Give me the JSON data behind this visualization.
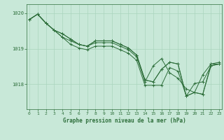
{
  "title": "Graphe pression niveau de la mer (hPa)",
  "bg_color": "#c8e8d8",
  "grid_color": "#aad4be",
  "line_color": "#2d6e3a",
  "ylim": [
    1017.3,
    1020.25
  ],
  "yticks": [
    1018,
    1019,
    1020
  ],
  "xlim": [
    -0.3,
    23.3
  ],
  "xticks": [
    0,
    1,
    2,
    3,
    4,
    5,
    6,
    7,
    8,
    9,
    10,
    11,
    12,
    13,
    14,
    15,
    16,
    17,
    18,
    19,
    20,
    21,
    22,
    23
  ],
  "series": [
    [
      1019.82,
      1019.97,
      1019.72,
      1019.52,
      1019.32,
      1019.22,
      1019.12,
      1019.07,
      1019.17,
      1019.17,
      1019.17,
      1019.07,
      1018.97,
      1018.77,
      1018.07,
      1018.52,
      1018.72,
      1018.32,
      1018.17,
      1017.87,
      1017.77,
      1017.72,
      1018.57,
      1018.62
    ],
    [
      1019.82,
      1019.97,
      1019.72,
      1019.52,
      1019.42,
      1019.27,
      1019.12,
      1019.07,
      1019.22,
      1019.22,
      1019.22,
      1019.12,
      1019.02,
      1018.82,
      1018.12,
      1018.07,
      1018.42,
      1018.62,
      1018.57,
      1017.67,
      1017.77,
      1017.72,
      1018.52,
      1018.57
    ],
    [
      1019.82,
      1019.97,
      1019.72,
      1019.52,
      1019.42,
      1019.27,
      1019.12,
      1019.07,
      1019.22,
      1019.22,
      1019.22,
      1019.12,
      1019.02,
      1018.82,
      1018.12,
      1018.07,
      1018.42,
      1018.62,
      1018.57,
      1017.67,
      1018.02,
      1018.07,
      1018.52,
      1018.57
    ],
    [
      1019.82,
      1019.97,
      1019.72,
      1019.52,
      1019.32,
      1019.12,
      1019.02,
      1018.97,
      1019.07,
      1019.07,
      1019.07,
      1018.97,
      1018.87,
      1018.67,
      1017.97,
      1017.97,
      1017.97,
      1018.47,
      1018.37,
      1017.67,
      1017.77,
      1018.27,
      1018.57,
      1018.57
    ]
  ]
}
